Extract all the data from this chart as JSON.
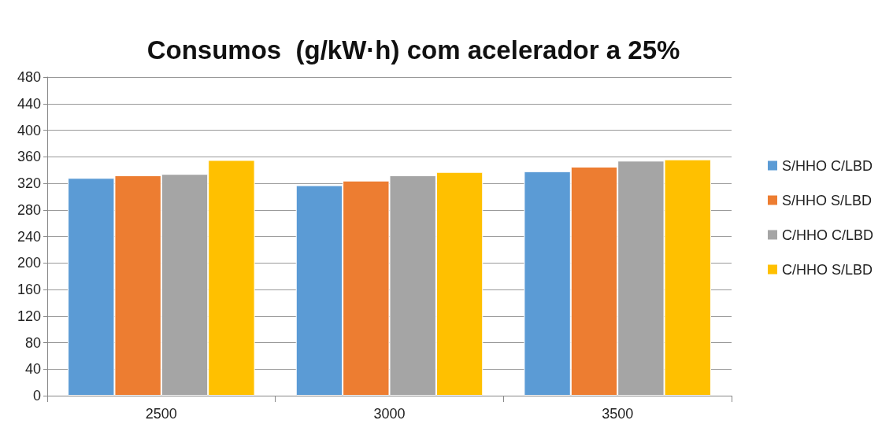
{
  "chart_data": {
    "type": "bar",
    "title": "Consumos  (g/kW·h) com acelerador a 25%",
    "categories": [
      "2500",
      "3000",
      "3500"
    ],
    "series": [
      {
        "name": "S/HHO C/LBD",
        "color": "#5b9bd5",
        "values": [
          328,
          317,
          338
        ]
      },
      {
        "name": "S/HHO S/LBD",
        "color": "#ed7d31",
        "values": [
          332,
          324,
          345
        ]
      },
      {
        "name": "C/HHO C/LBD",
        "color": "#a5a5a5",
        "values": [
          334,
          332,
          354
        ]
      },
      {
        "name": "C/HHO S/LBD",
        "color": "#ffc000",
        "values": [
          355,
          337,
          356
        ]
      }
    ],
    "ylim": [
      0,
      480
    ],
    "yticks": [
      0,
      40,
      80,
      120,
      160,
      200,
      240,
      280,
      320,
      360,
      400,
      440,
      480
    ],
    "grid": "y",
    "legend": "right"
  }
}
